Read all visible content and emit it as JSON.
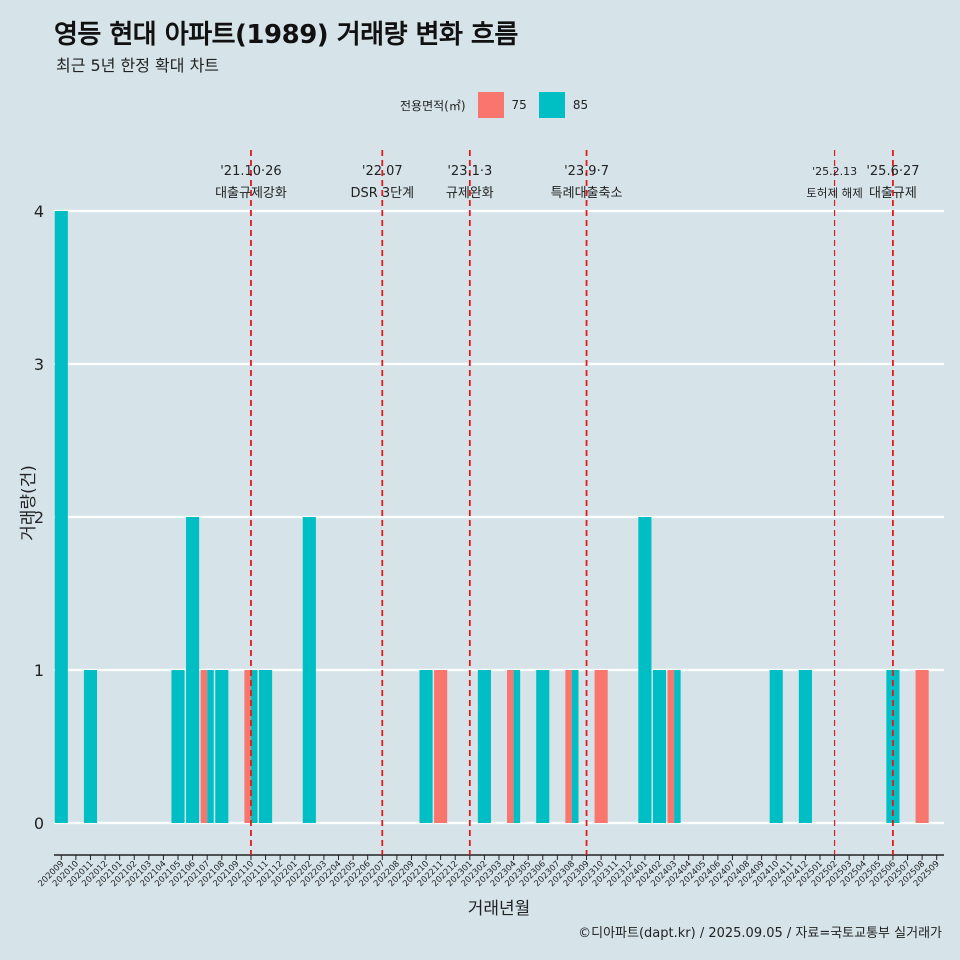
{
  "title": "영등 현대 아파트(1989) 거래량 변화 흐름",
  "subtitle": "최근 5년 한정 확대 차트",
  "caption": "©디아파트(dapt.kr) / 2025.09.05 / 자료=국토교통부 실거래가",
  "colors": {
    "s75": "#f8766d",
    "s85": "#00bfc4",
    "vline": "#e31a1c",
    "grid": "#ffffff",
    "background": "#d6e4ea"
  },
  "chart_data": {
    "type": "bar",
    "xlabel": "거래년월",
    "ylabel": "거래량(건)",
    "ylim": [
      0,
      4
    ],
    "yticks": [
      0,
      1,
      2,
      3,
      4
    ],
    "legend": {
      "title": "전용면적(㎡)",
      "position": "top"
    },
    "categories": [
      "202009",
      "202010",
      "202011",
      "202012",
      "202101",
      "202102",
      "202103",
      "202104",
      "202105",
      "202106",
      "202107",
      "202108",
      "202109",
      "202110",
      "202111",
      "202112",
      "202201",
      "202202",
      "202203",
      "202204",
      "202205",
      "202206",
      "202207",
      "202208",
      "202209",
      "202210",
      "202211",
      "202212",
      "202301",
      "202302",
      "202303",
      "202304",
      "202305",
      "202306",
      "202307",
      "202308",
      "202309",
      "202310",
      "202311",
      "202312",
      "202401",
      "202402",
      "202403",
      "202404",
      "202405",
      "202406",
      "202407",
      "202408",
      "202409",
      "202410",
      "202411",
      "202412",
      "202501",
      "202502",
      "202503",
      "202504",
      "202505",
      "202506",
      "202507",
      "202508",
      "202509"
    ],
    "series": [
      {
        "name": "75",
        "color": "#f8766d",
        "values": [
          0,
          0,
          0,
          0,
          0,
          0,
          0,
          0,
          0,
          0,
          1,
          0,
          0,
          1,
          0,
          0,
          0,
          0,
          0,
          0,
          0,
          0,
          0,
          0,
          0,
          0,
          1,
          0,
          0,
          0,
          0,
          1,
          0,
          0,
          0,
          1,
          0,
          1,
          0,
          0,
          0,
          0,
          1,
          0,
          0,
          0,
          0,
          0,
          0,
          0,
          0,
          0,
          0,
          0,
          0,
          0,
          0,
          0,
          0,
          1,
          0
        ]
      },
      {
        "name": "85",
        "color": "#00bfc4",
        "values": [
          4,
          0,
          1,
          0,
          0,
          0,
          0,
          0,
          1,
          2,
          1,
          1,
          0,
          1,
          1,
          0,
          0,
          2,
          0,
          0,
          0,
          0,
          0,
          0,
          0,
          1,
          0,
          0,
          0,
          1,
          0,
          1,
          0,
          1,
          0,
          1,
          0,
          0,
          0,
          0,
          2,
          1,
          1,
          0,
          0,
          0,
          0,
          0,
          0,
          1,
          0,
          1,
          0,
          0,
          0,
          0,
          0,
          1,
          0,
          0,
          0
        ]
      }
    ],
    "events": [
      {
        "category": "202110",
        "date": "'21.10·26",
        "label": "대출규제강화"
      },
      {
        "category": "202207",
        "date": "'22.07",
        "label": "DSR 3단계"
      },
      {
        "category": "202301",
        "date": "'23.1·3",
        "label": "규제완화"
      },
      {
        "category": "202309",
        "date": "'23.9·7",
        "label": "특례대출축소"
      },
      {
        "category": "202502",
        "date": "'25.2.13",
        "label": "토허제 해제"
      },
      {
        "category": "202506",
        "date": "'25.6·27",
        "label": "대출규제"
      }
    ]
  }
}
